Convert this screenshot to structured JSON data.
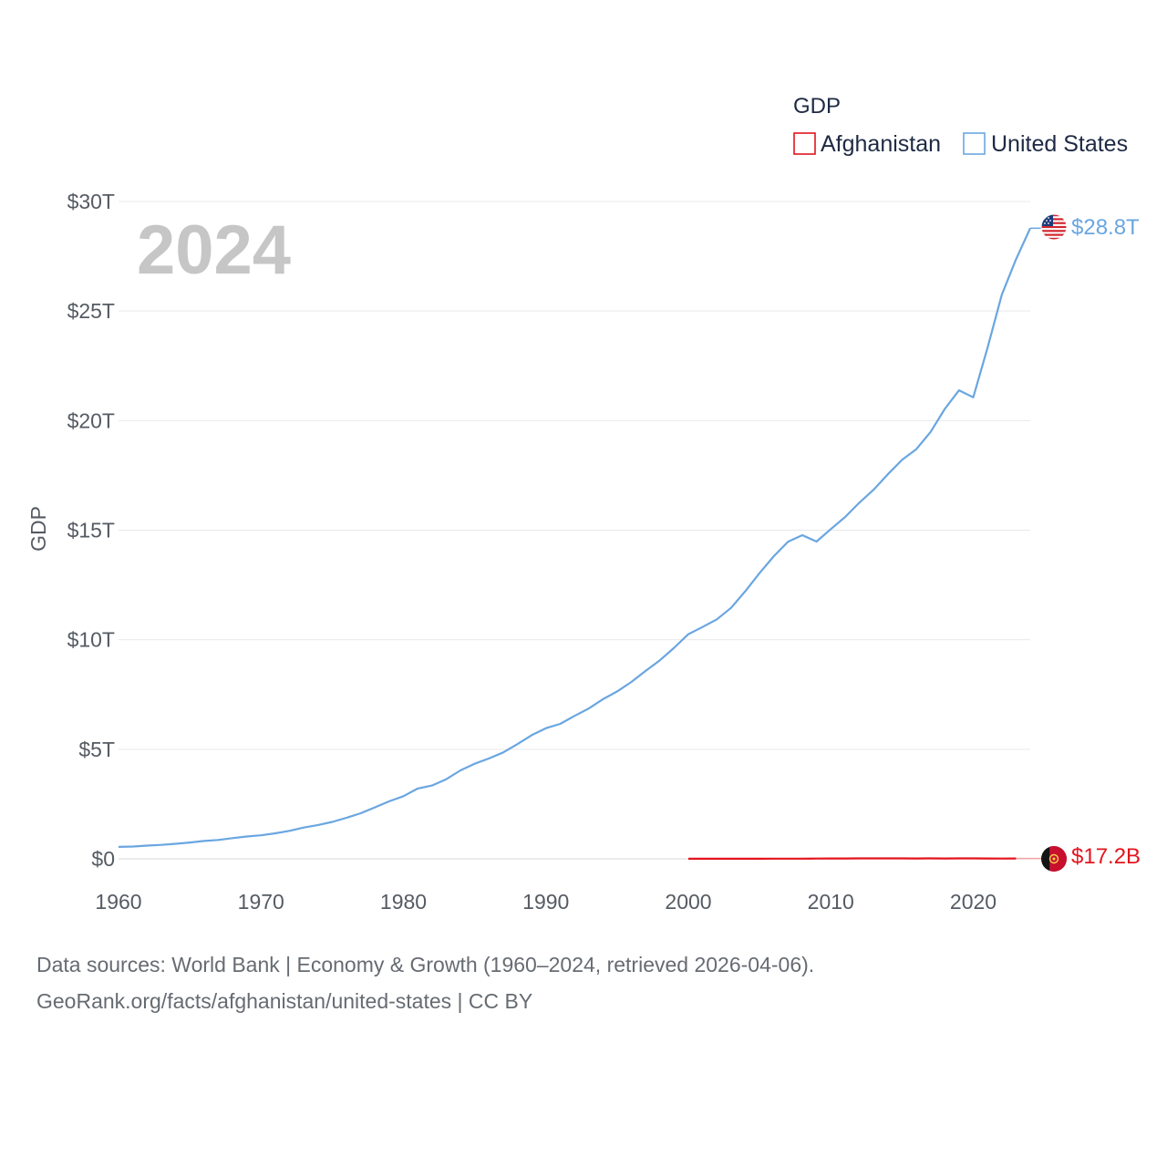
{
  "chart_data": {
    "type": "line",
    "ylabel": "GDP",
    "xlabel": "",
    "ylim": [
      0,
      30000000000000
    ],
    "xlim": [
      1960,
      2024
    ],
    "x_ticks": [
      1960,
      1970,
      1980,
      1990,
      2000,
      2010,
      2020
    ],
    "x_tick_labels": [
      "1960",
      "1970",
      "1980",
      "1990",
      "2000",
      "2010",
      "2020"
    ],
    "y_ticks": [
      0,
      5000000000000,
      10000000000000,
      15000000000000,
      20000000000000,
      25000000000000,
      30000000000000
    ],
    "y_tick_labels": [
      "$0",
      "$5T",
      "$10T",
      "$15T",
      "$20T",
      "$25T",
      "$30T"
    ],
    "grid": true,
    "highlight_year": "2024",
    "legend": {
      "title": "GDP",
      "position": "top-right",
      "items": [
        {
          "name": "Afghanistan",
          "color": "#e3141d"
        },
        {
          "name": "United States",
          "color": "#6aa6e0"
        }
      ]
    },
    "series": [
      {
        "name": "United States",
        "color": "#6aa6e0",
        "end_label": "$28.8T",
        "x": [
          1960,
          1961,
          1962,
          1963,
          1964,
          1965,
          1966,
          1967,
          1968,
          1969,
          1970,
          1971,
          1972,
          1973,
          1974,
          1975,
          1976,
          1977,
          1978,
          1979,
          1980,
          1981,
          1982,
          1983,
          1984,
          1985,
          1986,
          1987,
          1988,
          1989,
          1990,
          1991,
          1992,
          1993,
          1994,
          1995,
          1996,
          1997,
          1998,
          1999,
          2000,
          2001,
          2002,
          2003,
          2004,
          2005,
          2006,
          2007,
          2008,
          2009,
          2010,
          2011,
          2012,
          2013,
          2014,
          2015,
          2016,
          2017,
          2018,
          2019,
          2020,
          2021,
          2022,
          2023,
          2024
        ],
        "values": [
          543300000000,
          563300000000,
          605100000000,
          638600000000,
          685800000000,
          743700000000,
          815000000000,
          861700000000,
          942500000000,
          1019900000000,
          1073300000000,
          1164900000000,
          1279100000000,
          1425400000000,
          1545200000000,
          1684900000000,
          1873400000000,
          2081800000000,
          2351600000000,
          2627300000000,
          2857300000000,
          3207000000000,
          3343800000000,
          3634000000000,
          4037600000000,
          4339000000000,
          4579600000000,
          4855200000000,
          5236400000000,
          5641600000000,
          5963100000000,
          6158100000000,
          6520300000000,
          6858600000000,
          7287200000000,
          7639700000000,
          8073100000000,
          8577600000000,
          9062800000000,
          9631200000000,
          10251000000000,
          10581900000000,
          10929100000000,
          11456400000000,
          12217200000000,
          13039200000000,
          13815600000000,
          14474200000000,
          14769900000000,
          14478100000000,
          15049000000000,
          15599700000000,
          16254000000000,
          16843200000000,
          17550700000000,
          18206000000000,
          18695100000000,
          19477300000000,
          20533100000000,
          21380900000000,
          21060500000000,
          23315100000000,
          25744100000000,
          27360900000000,
          28780000000000
        ]
      },
      {
        "name": "Afghanistan",
        "color": "#e3141d",
        "end_label": "$17.2B",
        "x": [
          2000,
          2001,
          2002,
          2003,
          2004,
          2005,
          2006,
          2007,
          2008,
          2009,
          2010,
          2011,
          2012,
          2013,
          2014,
          2015,
          2016,
          2017,
          2018,
          2019,
          2020,
          2021,
          2022,
          2023,
          2024
        ],
        "values": [
          3500000000,
          3800000000,
          4100000000,
          4600000000,
          5300000000,
          6200000000,
          7100000000,
          9700000000,
          10100000000,
          12400000000,
          15900000000,
          17800000000,
          20000000000,
          20600000000,
          20500000000,
          19900000000,
          18000000000,
          18900000000,
          18400000000,
          18900000000,
          20100000000,
          14600000000,
          14500000000,
          17200000000,
          17200000000
        ]
      }
    ]
  },
  "footer": {
    "line1": "Data sources: World Bank | Economy & Growth (1960–2024, retrieved 2026-04-06).",
    "line2": "GeoRank.org/facts/afghanistan/united-states | CC BY"
  }
}
